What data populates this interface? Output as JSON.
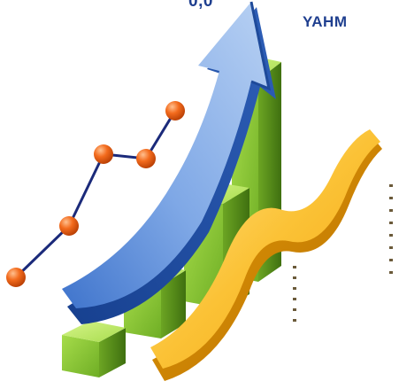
{
  "labels": {
    "top_number": "0,0",
    "right_text": "YAHM"
  },
  "colors": {
    "label": "#1f3f8f",
    "arrow_light": "#a9c6ef",
    "arrow_mid": "#4d7fd2",
    "arrow_dark": "#1e4a9a",
    "cube_light": "#c5ec6e",
    "cube_mid": "#8fc83b",
    "cube_dark": "#5f9a1f",
    "ribbon_light": "#ffe07a",
    "ribbon_mid": "#f6b21c",
    "ribbon_dark": "#d98a00",
    "dot_light": "#ffb27a",
    "dot_mid": "#f2691d",
    "dot_dark": "#c74505",
    "line": "#1b2a7a",
    "dotted": "#6b5a3a"
  },
  "icons": {
    "arrow": "growth-arrow-icon",
    "bars": "3d-bar-chart-icon",
    "ribbon": "wave-ribbon-icon",
    "line": "line-graph-icon"
  }
}
